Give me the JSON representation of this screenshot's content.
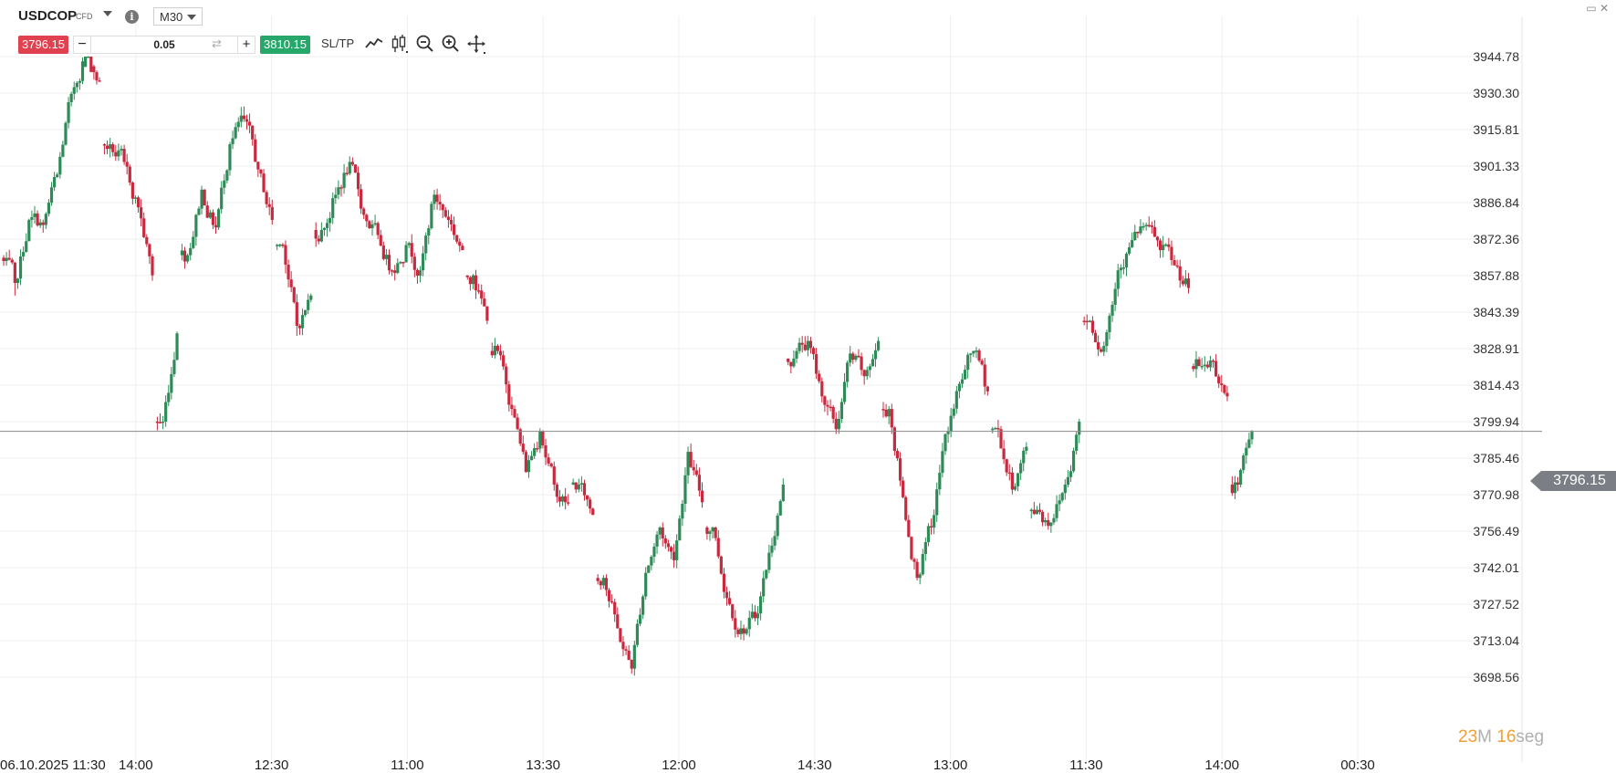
{
  "toolbar": {
    "symbol": "USDCOP",
    "symbol_type": "CFD",
    "timeframe": "M30",
    "sell_price": "3796.15",
    "quantity": "0.05",
    "buy_price": "3810.15",
    "sl_tp_label": "SL/TP",
    "icons": [
      "line-chart-icon",
      "candlestick-icon",
      "zoom-out-icon",
      "zoom-in-icon",
      "move-icon"
    ]
  },
  "countdown": {
    "minutes": "23",
    "minutes_unit": "M",
    "seconds": "16",
    "seconds_unit": "seg"
  },
  "colors": {
    "up": "#2e8b57",
    "down": "#c8293e",
    "grid": "#efefef",
    "price_line": "#8a8a8a"
  },
  "chart_data": {
    "type": "candlestick",
    "symbol": "USDCOP",
    "timeframe": "M30",
    "current_price": 3796.15,
    "current_price_label": "3796.15",
    "y_ticks": [
      "3944.78",
      "3930.30",
      "3915.81",
      "3901.33",
      "3886.84",
      "3872.36",
      "3857.88",
      "3843.39",
      "3828.91",
      "3814.43",
      "3799.94",
      "3785.46",
      "3770.98",
      "3756.49",
      "3742.01",
      "3727.52",
      "3713.04",
      "3698.56"
    ],
    "ylim": [
      3698.56,
      3958.0
    ],
    "x_ticks": [
      "06.10.2025 11:30",
      "14:00",
      "12:30",
      "11:00",
      "13:30",
      "12:00",
      "14:30",
      "13:00",
      "11:30",
      "14:00",
      "00:30"
    ],
    "anchors": [
      {
        "label": "06.10.2025 11:30",
        "open": 3865,
        "close": 3855,
        "low": 3850
      },
      {
        "label": "",
        "close": 3880
      },
      {
        "label": "",
        "close": 3878
      },
      {
        "label": "",
        "close": 3898
      },
      {
        "label": "",
        "close": 3930
      },
      {
        "label": "14:00",
        "close": 3947,
        "high": 3948
      },
      {
        "label": "",
        "close": 3935
      },
      {
        "label": "",
        "gap": true,
        "open": 3910
      },
      {
        "label": "",
        "close": 3903
      },
      {
        "label": "",
        "close": 3885
      },
      {
        "label": "",
        "close": 3858
      },
      {
        "label": "",
        "gap": true,
        "open": 3800,
        "low": 3797
      },
      {
        "label": "",
        "close": 3835
      },
      {
        "label": "12:30",
        "gap": true,
        "open": 3866
      },
      {
        "label": "",
        "close": 3892
      },
      {
        "label": "",
        "close": 3877
      },
      {
        "label": "",
        "close": 3910
      },
      {
        "label": "",
        "close": 3920,
        "high": 3925
      },
      {
        "label": "",
        "close": 3900
      },
      {
        "label": "",
        "close": 3880
      },
      {
        "label": "",
        "gap": true,
        "open": 3870
      },
      {
        "label": "11:00",
        "close": 3838,
        "low": 3834
      },
      {
        "label": "",
        "close": 3850
      },
      {
        "label": "",
        "gap": true,
        "open": 3876
      },
      {
        "label": "",
        "close": 3890
      },
      {
        "label": "",
        "close": 3903,
        "high": 3904
      },
      {
        "label": "",
        "close": 3882
      },
      {
        "label": "",
        "close": 3874
      },
      {
        "label": "",
        "close": 3860
      },
      {
        "label": "",
        "close": 3870
      },
      {
        "label": "",
        "close": 3860
      },
      {
        "label": "",
        "close": 3890
      },
      {
        "label": "13:30",
        "close": 3880
      },
      {
        "label": "",
        "close": 3868
      },
      {
        "label": "",
        "gap": true,
        "open": 3858
      },
      {
        "label": "",
        "close": 3840
      },
      {
        "label": "",
        "gap": true,
        "open": 3828
      },
      {
        "label": "",
        "close": 3805
      },
      {
        "label": "",
        "close": 3780
      },
      {
        "label": "",
        "close": 3796
      },
      {
        "label": "",
        "close": 3775
      },
      {
        "label": "",
        "close": 3768
      },
      {
        "label": "",
        "gap": true,
        "open": 3775
      },
      {
        "label": "",
        "close": 3763
      },
      {
        "label": "12:00",
        "gap": true,
        "open": 3738
      },
      {
        "label": "",
        "close": 3718
      },
      {
        "label": "",
        "close": 3702,
        "low": 3700
      },
      {
        "label": "",
        "close": 3740
      },
      {
        "label": "",
        "close": 3758
      },
      {
        "label": "",
        "close": 3745
      },
      {
        "label": "",
        "close": 3788,
        "high": 3789
      },
      {
        "label": "",
        "close": 3768
      },
      {
        "label": "",
        "gap": true,
        "open": 3758
      },
      {
        "label": "",
        "close": 3730
      },
      {
        "label": "14:30",
        "close": 3718,
        "low": 3715
      },
      {
        "label": "",
        "close": 3722
      },
      {
        "label": "",
        "close": 3748
      },
      {
        "label": "",
        "close": 3775
      },
      {
        "label": "",
        "gap": true,
        "open": 3825
      },
      {
        "label": "",
        "close": 3832
      },
      {
        "label": "",
        "close": 3810
      },
      {
        "label": "",
        "close": 3797
      },
      {
        "label": "",
        "close": 3827
      },
      {
        "label": "13:00",
        "close": 3818
      },
      {
        "label": "",
        "close": 3832
      },
      {
        "label": "",
        "gap": true,
        "open": 3805
      },
      {
        "label": "",
        "close": 3770
      },
      {
        "label": "",
        "close": 3738,
        "low": 3737
      },
      {
        "label": "",
        "close": 3758
      },
      {
        "label": "",
        "close": 3795
      },
      {
        "label": "",
        "close": 3815
      },
      {
        "label": "",
        "close": 3828
      },
      {
        "label": "",
        "close": 3812
      },
      {
        "label": "",
        "gap": true,
        "open": 3797
      },
      {
        "label": "11:30",
        "close": 3773
      },
      {
        "label": "",
        "close": 3790
      },
      {
        "label": "",
        "gap": true,
        "open": 3765
      },
      {
        "label": "",
        "close": 3760
      },
      {
        "label": "",
        "close": 3775
      },
      {
        "label": "",
        "close": 3800
      },
      {
        "label": "",
        "gap": true,
        "open": 3840
      },
      {
        "label": "",
        "close": 3830
      },
      {
        "label": "",
        "close": 3860
      },
      {
        "label": "",
        "close": 3872
      },
      {
        "label": "",
        "close": 3878,
        "high": 3879
      },
      {
        "label": "",
        "close": 3868
      },
      {
        "label": "",
        "close": 3862
      },
      {
        "label": "",
        "close": 3853
      },
      {
        "label": "14:00",
        "gap": true,
        "open": 3822
      },
      {
        "label": "",
        "close": 3824
      },
      {
        "label": "",
        "close": 3810
      },
      {
        "label": "",
        "gap": true,
        "open": 3775
      },
      {
        "label": "",
        "close": 3796.15
      }
    ]
  }
}
